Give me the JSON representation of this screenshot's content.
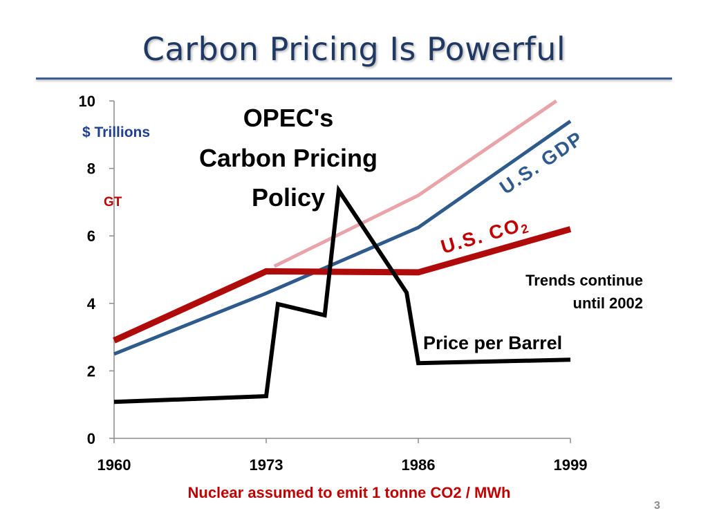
{
  "slide": {
    "title": "Carbon Pricing Is Powerful",
    "page_number": "3"
  },
  "chart_data": {
    "type": "line",
    "x_ticks": [
      "1960",
      "1973",
      "1986",
      "1999"
    ],
    "y_ticks": [
      "0",
      "2",
      "4",
      "6",
      "8",
      "10"
    ],
    "xlim": [
      1960,
      1999
    ],
    "ylim": [
      0,
      10
    ],
    "left_unit_labels": [
      "$ Trillions",
      "GT"
    ],
    "footnote": "Nuclear assumed to emit 1 tonne CO2 / MWh",
    "colors": {
      "gdp": "#2e5a8c",
      "gdp_trend": "#e8a4a8",
      "co2": "#b00b0b",
      "price": "#000000",
      "trillions_label": "#1f3f8f",
      "gt_label": "#c00000",
      "footnote": "#c00000"
    },
    "series": [
      {
        "name": "U.S. GDP trend continuation",
        "color": "#e8a4a8",
        "points": [
          [
            1973.7,
            5.1
          ],
          [
            1986,
            7.2
          ],
          [
            1997.8,
            10.0
          ]
        ]
      },
      {
        "name": "U.S. GDP",
        "color": "#2e5a8c",
        "points": [
          [
            1960,
            2.5
          ],
          [
            1973,
            4.3
          ],
          [
            1986,
            6.25
          ],
          [
            1999,
            9.4
          ]
        ]
      },
      {
        "name": "U.S. CO2",
        "color": "#b00b0b",
        "points": [
          [
            1960,
            2.9
          ],
          [
            1973,
            4.95
          ],
          [
            1986,
            4.92
          ],
          [
            1999,
            6.2
          ]
        ]
      },
      {
        "name": "Price per Barrel",
        "color": "#000000",
        "points": [
          [
            1960,
            1.08
          ],
          [
            1973,
            1.25
          ],
          [
            1974,
            3.98
          ],
          [
            1978,
            3.65
          ],
          [
            1979.2,
            7.35
          ],
          [
            1985,
            4.32
          ],
          [
            1986,
            2.23
          ],
          [
            1999,
            2.33
          ]
        ]
      }
    ],
    "annotations": {
      "opec_line1": "OPEC's",
      "opec_line2": "Carbon Pricing",
      "opec_line3": "Policy",
      "gdp_label": "U.S. GDP",
      "co2_label": "U.S. CO",
      "co2_subscript": "2",
      "trends_line1": "Trends continue",
      "trends_line2": "until 2002",
      "price_label": "Price per Barrel"
    }
  }
}
